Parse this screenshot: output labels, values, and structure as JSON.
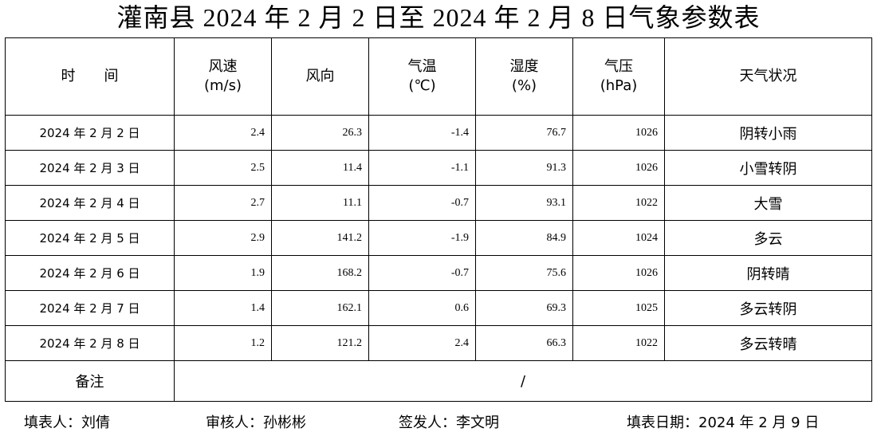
{
  "title": "灌南县 2024 年 2 月 2 日至 2024 年 2 月 8 日气象参数表",
  "table": {
    "headers": [
      [
        "时　　间"
      ],
      [
        "风速",
        "(m/s)"
      ],
      [
        "风向"
      ],
      [
        "气温",
        "(℃)"
      ],
      [
        "湿度",
        "(%)"
      ],
      [
        "气压",
        "(hPa)"
      ],
      [
        "天气状况"
      ]
    ],
    "rows": [
      [
        "2024 年 2 月 2 日",
        2.4,
        26.3,
        -1.4,
        76.7,
        1026,
        "阴转小雨"
      ],
      [
        "2024 年 2 月 3 日",
        2.5,
        11.4,
        -1.1,
        91.3,
        1026,
        "小雪转阴"
      ],
      [
        "2024 年 2 月 4 日",
        2.7,
        11.1,
        -0.7,
        93.1,
        1022,
        "大雪"
      ],
      [
        "2024 年 2 月 5 日",
        2.9,
        141.2,
        -1.9,
        84.9,
        1024,
        "多云"
      ],
      [
        "2024 年 2 月 6 日",
        1.9,
        168.2,
        -0.7,
        75.6,
        1026,
        "阴转晴"
      ],
      [
        "2024 年 2 月 7 日",
        1.4,
        162.1,
        0.6,
        69.3,
        1025,
        "多云转阴"
      ],
      [
        "2024 年 2 月 8 日",
        1.2,
        121.2,
        2.4,
        66.3,
        1022,
        "多云转晴"
      ]
    ],
    "remarks": {
      "label": "备注",
      "value": "/"
    }
  },
  "footer": [
    "填表人：刘倩",
    "审核人：孙彬彬",
    "签发人：李文明",
    "填表日期：2024 年 2 月 9 日"
  ]
}
